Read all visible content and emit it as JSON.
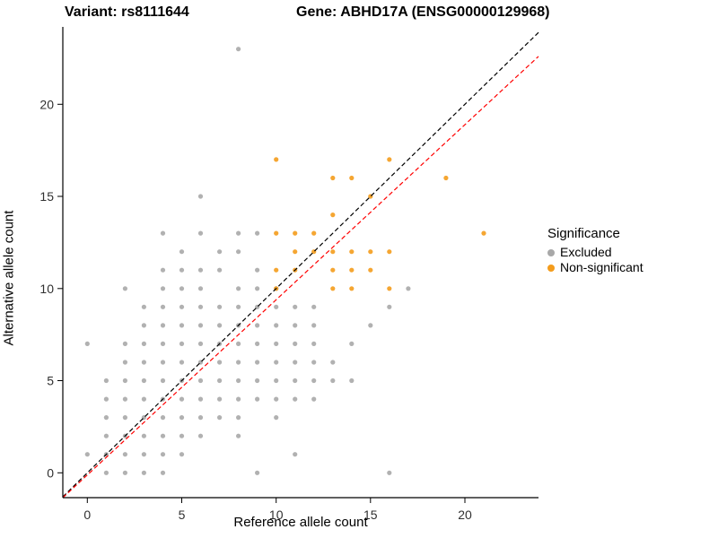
{
  "header": {
    "variant_title": "Variant: rs8111644",
    "gene_title": "Gene: ABHD17A (ENSG00000129968)"
  },
  "legend": {
    "title": "Significance",
    "items": [
      {
        "label": "Excluded",
        "color": "#A8A8A8"
      },
      {
        "label": "Non-significant",
        "color": "#F49C1C"
      }
    ]
  },
  "chart_data": {
    "type": "scatter",
    "title": "",
    "xlabel": "Reference allele count",
    "ylabel": "Alternative allele count",
    "xlim": [
      -1.3,
      23.9
    ],
    "ylim": [
      -1.35,
      24.2
    ],
    "x_ticks": [
      0,
      5,
      10,
      15,
      20
    ],
    "y_ticks": [
      0,
      5,
      10,
      15,
      20
    ],
    "grid": false,
    "legend_position": "right",
    "series": [
      {
        "name": "Excluded",
        "color": "#A8A8A8",
        "points": [
          [
            1,
            0
          ],
          [
            2,
            0
          ],
          [
            3,
            0
          ],
          [
            4,
            0
          ],
          [
            9,
            0
          ],
          [
            16,
            0
          ],
          [
            0,
            1
          ],
          [
            1,
            1
          ],
          [
            2,
            1
          ],
          [
            3,
            1
          ],
          [
            4,
            1
          ],
          [
            5,
            1
          ],
          [
            11,
            1
          ],
          [
            1,
            2
          ],
          [
            2,
            2
          ],
          [
            3,
            2
          ],
          [
            4,
            2
          ],
          [
            5,
            2
          ],
          [
            6,
            2
          ],
          [
            8,
            2
          ],
          [
            1,
            3
          ],
          [
            2,
            3
          ],
          [
            3,
            3
          ],
          [
            4,
            3
          ],
          [
            5,
            3
          ],
          [
            6,
            3
          ],
          [
            7,
            3
          ],
          [
            8,
            3
          ],
          [
            10,
            3
          ],
          [
            1,
            4
          ],
          [
            2,
            4
          ],
          [
            3,
            4
          ],
          [
            4,
            4
          ],
          [
            5,
            4
          ],
          [
            6,
            4
          ],
          [
            7,
            4
          ],
          [
            8,
            4
          ],
          [
            9,
            4
          ],
          [
            10,
            4
          ],
          [
            11,
            4
          ],
          [
            12,
            4
          ],
          [
            1,
            5
          ],
          [
            2,
            5
          ],
          [
            3,
            5
          ],
          [
            4,
            5
          ],
          [
            5,
            5
          ],
          [
            6,
            5
          ],
          [
            7,
            5
          ],
          [
            8,
            5
          ],
          [
            9,
            5
          ],
          [
            10,
            5
          ],
          [
            11,
            5
          ],
          [
            12,
            5
          ],
          [
            13,
            5
          ],
          [
            14,
            5
          ],
          [
            2,
            6
          ],
          [
            3,
            6
          ],
          [
            4,
            6
          ],
          [
            5,
            6
          ],
          [
            6,
            6
          ],
          [
            7,
            6
          ],
          [
            8,
            6
          ],
          [
            9,
            6
          ],
          [
            10,
            6
          ],
          [
            11,
            6
          ],
          [
            12,
            6
          ],
          [
            13,
            6
          ],
          [
            0,
            7
          ],
          [
            2,
            7
          ],
          [
            3,
            7
          ],
          [
            4,
            7
          ],
          [
            5,
            7
          ],
          [
            6,
            7
          ],
          [
            7,
            7
          ],
          [
            8,
            7
          ],
          [
            9,
            7
          ],
          [
            10,
            7
          ],
          [
            11,
            7
          ],
          [
            12,
            7
          ],
          [
            14,
            7
          ],
          [
            3,
            8
          ],
          [
            4,
            8
          ],
          [
            5,
            8
          ],
          [
            6,
            8
          ],
          [
            7,
            8
          ],
          [
            8,
            8
          ],
          [
            9,
            8
          ],
          [
            10,
            8
          ],
          [
            11,
            8
          ],
          [
            12,
            8
          ],
          [
            15,
            8
          ],
          [
            3,
            9
          ],
          [
            4,
            9
          ],
          [
            5,
            9
          ],
          [
            6,
            9
          ],
          [
            7,
            9
          ],
          [
            8,
            9
          ],
          [
            9,
            9
          ],
          [
            10,
            9
          ],
          [
            11,
            9
          ],
          [
            12,
            9
          ],
          [
            16,
            9
          ],
          [
            2,
            10
          ],
          [
            4,
            10
          ],
          [
            5,
            10
          ],
          [
            6,
            10
          ],
          [
            8,
            10
          ],
          [
            9,
            10
          ],
          [
            10,
            10
          ],
          [
            17,
            10
          ],
          [
            4,
            11
          ],
          [
            5,
            11
          ],
          [
            6,
            11
          ],
          [
            7,
            11
          ],
          [
            9,
            11
          ],
          [
            5,
            12
          ],
          [
            7,
            12
          ],
          [
            8,
            12
          ],
          [
            4,
            13
          ],
          [
            6,
            13
          ],
          [
            8,
            13
          ],
          [
            9,
            13
          ],
          [
            6,
            15
          ],
          [
            8,
            23
          ]
        ]
      },
      {
        "name": "Non-significant",
        "color": "#F49C1C",
        "points": [
          [
            10,
            17
          ],
          [
            16,
            17
          ],
          [
            13,
            16
          ],
          [
            14,
            16
          ],
          [
            19,
            16
          ],
          [
            15,
            15
          ],
          [
            13,
            14
          ],
          [
            10,
            13
          ],
          [
            11,
            13
          ],
          [
            12,
            13
          ],
          [
            21,
            13
          ],
          [
            11,
            12
          ],
          [
            12,
            12
          ],
          [
            13,
            12
          ],
          [
            14,
            12
          ],
          [
            15,
            12
          ],
          [
            16,
            12
          ],
          [
            10,
            11
          ],
          [
            11,
            11
          ],
          [
            13,
            11
          ],
          [
            14,
            11
          ],
          [
            15,
            11
          ],
          [
            10,
            10
          ],
          [
            13,
            10
          ],
          [
            14,
            10
          ],
          [
            16,
            10
          ]
        ]
      }
    ],
    "lines": [
      {
        "name": "identity-line",
        "color": "#000000",
        "dash": "5,3",
        "points": [
          [
            -1.3,
            -1.3
          ],
          [
            23.9,
            23.9
          ]
        ]
      },
      {
        "name": "fit-line",
        "color": "#FF0000",
        "dash": "5,3",
        "points": [
          [
            -1.3,
            -1.35
          ],
          [
            23.9,
            22.6
          ]
        ]
      }
    ]
  }
}
